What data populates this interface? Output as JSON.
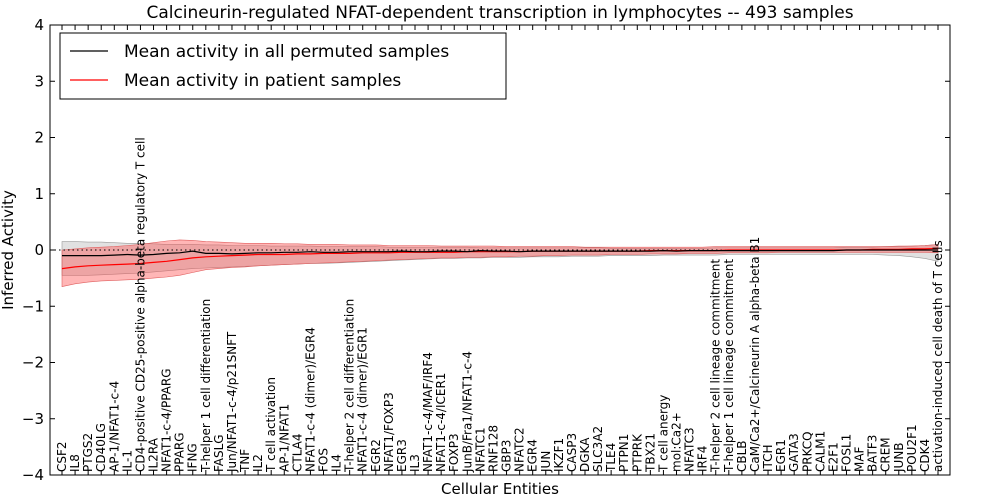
{
  "chart_data": {
    "type": "line",
    "title": "Calcineurin-regulated NFAT-dependent transcription in lymphocytes -- 493 samples",
    "xlabel": "Cellular Entities",
    "ylabel": "Inferred Activity",
    "ylim": [
      -4,
      4
    ],
    "yticks": [
      -4,
      -3,
      -2,
      -1,
      0,
      1,
      2,
      3,
      4
    ],
    "legend_position": "top-left",
    "categories": [
      "CSF2",
      "IL8",
      "PTGS2",
      "CD40LG",
      "AP-1/NFAT1-c-4",
      "IL-1",
      "CD4-positive CD25-positive alpha-beta regulatory T cell",
      "IL2RA",
      "NFAT1-c-4/PPARG",
      "PPARG",
      "IFNG",
      "T-helper 1 cell differentiation",
      "FASLG",
      "Jun/NFAT1-c-4/p21SNFT",
      "TNF",
      "IL2",
      "T cell activation",
      "AP-1/NFAT1",
      "CTLA4",
      "NFAT1-c-4 (dimer)/EGR4",
      "FOS",
      "IL4",
      "T-helper 2 cell differentiation",
      "NFAT1-c-4 (dimer)/EGR1",
      "EGR2",
      "NFAT1/FOXP3",
      "EGR3",
      "IL3",
      "NFAT1-c-4/MAF/IRF4",
      "NFAT1-c-4/ICER1",
      "FOXP3",
      "JunB/Fra1/NFAT1-c-4",
      "NFATC1",
      "RNF128",
      "GBP3",
      "NFATC2",
      "EGR4",
      "JUN",
      "IKZF1",
      "CASP3",
      "DGKA",
      "SLC3A2",
      "TLE4",
      "PTPN1",
      "PTPRK",
      "TBX21",
      "T cell anergy",
      "mol:Ca2+",
      "NFATC3",
      "IRF4",
      "T-helper 2 cell lineage commitment",
      "T-helper 1 cell lineage commitment",
      "CBLB",
      "CaM/Ca2+/Calcineurin A alpha-beta B1",
      "ITCH",
      "EGR1",
      "GATA3",
      "PRKCQ",
      "CALM1",
      "E2F1",
      "FOSL1",
      "MAF",
      "BATF3",
      "CREM",
      "JUNB",
      "POU2F1",
      "CDK4",
      "activation-induced cell death of T cells"
    ],
    "series": [
      {
        "name": "Mean activity in all permuted samples",
        "color": "#000000",
        "values": [
          -0.1,
          -0.1,
          -0.1,
          -0.1,
          -0.09,
          -0.08,
          -0.09,
          -0.08,
          -0.06,
          -0.05,
          -0.02,
          -0.06,
          -0.06,
          -0.07,
          -0.06,
          -0.05,
          -0.05,
          -0.04,
          -0.04,
          -0.03,
          -0.04,
          -0.04,
          -0.03,
          -0.03,
          -0.03,
          -0.03,
          -0.02,
          -0.03,
          -0.03,
          -0.02,
          -0.02,
          -0.03,
          -0.01,
          -0.02,
          -0.02,
          -0.03,
          -0.02,
          -0.02,
          -0.02,
          -0.02,
          -0.02,
          -0.02,
          -0.02,
          -0.02,
          -0.02,
          -0.02,
          -0.01,
          -0.02,
          -0.01,
          -0.01,
          -0.01,
          -0.01,
          -0.01,
          -0.01,
          -0.01,
          -0.01,
          -0.01,
          -0.01,
          -0.01,
          -0.01,
          0.0,
          0.0,
          0.0,
          0.0,
          0.0,
          0.0,
          0.0,
          0.0
        ],
        "band_lower": [
          -0.45,
          -0.45,
          -0.45,
          -0.44,
          -0.43,
          -0.42,
          -0.41,
          -0.39,
          -0.37,
          -0.35,
          -0.33,
          -0.32,
          -0.31,
          -0.3,
          -0.29,
          -0.28,
          -0.27,
          -0.26,
          -0.25,
          -0.24,
          -0.24,
          -0.23,
          -0.22,
          -0.21,
          -0.2,
          -0.19,
          -0.18,
          -0.17,
          -0.16,
          -0.15,
          -0.15,
          -0.14,
          -0.14,
          -0.13,
          -0.13,
          -0.13,
          -0.12,
          -0.12,
          -0.12,
          -0.11,
          -0.11,
          -0.11,
          -0.1,
          -0.1,
          -0.1,
          -0.1,
          -0.09,
          -0.09,
          -0.09,
          -0.09,
          -0.09,
          -0.08,
          -0.08,
          -0.08,
          -0.08,
          -0.08,
          -0.08,
          -0.08,
          -0.08,
          -0.08,
          -0.08,
          -0.08,
          -0.08,
          -0.09,
          -0.1,
          -0.12,
          -0.15,
          -0.2
        ],
        "band_upper": [
          0.15,
          0.15,
          0.14,
          0.14,
          0.13,
          0.12,
          0.12,
          0.11,
          0.1,
          0.1,
          0.1,
          0.09,
          0.09,
          0.08,
          0.08,
          0.08,
          0.07,
          0.07,
          0.07,
          0.07,
          0.06,
          0.06,
          0.06,
          0.06,
          0.06,
          0.05,
          0.05,
          0.05,
          0.05,
          0.05,
          0.05,
          0.05,
          0.04,
          0.04,
          0.04,
          0.04,
          0.04,
          0.04,
          0.04,
          0.04,
          0.04,
          0.04,
          0.03,
          0.03,
          0.03,
          0.03,
          0.03,
          0.03,
          0.03,
          0.03,
          0.04,
          0.04,
          0.04,
          0.04,
          0.04,
          0.04,
          0.04,
          0.04,
          0.04,
          0.04,
          0.05,
          0.05,
          0.05,
          0.06,
          0.06,
          0.07,
          0.08,
          0.1
        ]
      },
      {
        "name": "Mean activity in patient samples",
        "color": "#ff0000",
        "values": [
          -0.33,
          -0.3,
          -0.28,
          -0.27,
          -0.26,
          -0.25,
          -0.24,
          -0.22,
          -0.2,
          -0.17,
          -0.14,
          -0.12,
          -0.11,
          -0.1,
          -0.09,
          -0.08,
          -0.08,
          -0.08,
          -0.07,
          -0.07,
          -0.06,
          -0.06,
          -0.06,
          -0.05,
          -0.05,
          -0.05,
          -0.04,
          -0.04,
          -0.04,
          -0.04,
          -0.04,
          -0.03,
          -0.03,
          -0.03,
          -0.03,
          -0.03,
          -0.02,
          -0.02,
          -0.02,
          -0.02,
          -0.02,
          -0.02,
          -0.02,
          -0.02,
          -0.02,
          -0.01,
          -0.01,
          -0.01,
          -0.01,
          -0.01,
          -0.01,
          0.0,
          0.0,
          0.0,
          0.0,
          0.0,
          0.0,
          0.0,
          0.0,
          0.0,
          0.0,
          0.0,
          0.01,
          0.01,
          0.01,
          0.02,
          0.02,
          0.03
        ],
        "band_lower": [
          -0.65,
          -0.6,
          -0.57,
          -0.55,
          -0.54,
          -0.53,
          -0.52,
          -0.5,
          -0.48,
          -0.45,
          -0.4,
          -0.35,
          -0.33,
          -0.31,
          -0.3,
          -0.28,
          -0.27,
          -0.26,
          -0.25,
          -0.24,
          -0.23,
          -0.22,
          -0.21,
          -0.2,
          -0.19,
          -0.18,
          -0.17,
          -0.16,
          -0.15,
          -0.14,
          -0.14,
          -0.13,
          -0.13,
          -0.12,
          -0.12,
          -0.11,
          -0.11,
          -0.1,
          -0.1,
          -0.09,
          -0.09,
          -0.09,
          -0.08,
          -0.08,
          -0.08,
          -0.07,
          -0.07,
          -0.07,
          -0.06,
          -0.06,
          -0.06,
          -0.05,
          -0.05,
          -0.05,
          -0.05,
          -0.04,
          -0.04,
          -0.04,
          -0.04,
          -0.04,
          -0.04,
          -0.04,
          -0.04,
          -0.04,
          -0.04,
          -0.04,
          -0.04,
          -0.05
        ],
        "band_upper": [
          0.0,
          0.02,
          0.04,
          0.05,
          0.06,
          0.08,
          0.1,
          0.13,
          0.16,
          0.18,
          0.17,
          0.15,
          0.14,
          0.13,
          0.12,
          0.12,
          0.12,
          0.11,
          0.11,
          0.1,
          0.1,
          0.1,
          0.09,
          0.09,
          0.09,
          0.08,
          0.08,
          0.08,
          0.08,
          0.07,
          0.07,
          0.07,
          0.07,
          0.07,
          0.06,
          0.06,
          0.06,
          0.06,
          0.06,
          0.06,
          0.05,
          0.05,
          0.05,
          0.05,
          0.05,
          0.05,
          0.05,
          0.05,
          0.05,
          0.05,
          0.06,
          0.06,
          0.06,
          0.06,
          0.06,
          0.06,
          0.06,
          0.06,
          0.06,
          0.06,
          0.06,
          0.06,
          0.06,
          0.06,
          0.07,
          0.07,
          0.08,
          0.1
        ]
      }
    ]
  }
}
